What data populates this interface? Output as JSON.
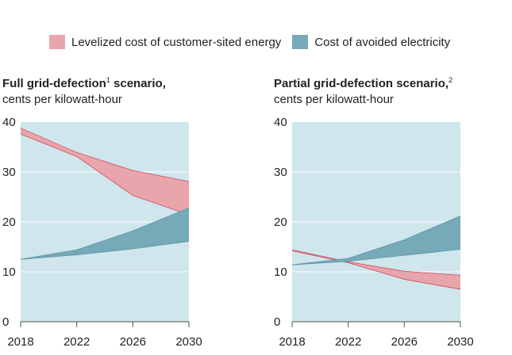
{
  "legend": {
    "items": [
      {
        "label": "Levelized cost of customer-sited energy",
        "color": "#e8a6ac"
      },
      {
        "label": "Cost of avoided electricity",
        "color": "#76aab9"
      }
    ]
  },
  "colors": {
    "plot_bg": "#cfe6ec",
    "grid": "#ffffff",
    "axis": "#6e6e6e",
    "customer_fill": "#e8a6ac",
    "customer_edge": "#cf4a5e",
    "avoided_fill": "#76aab9",
    "avoided_edge": "#5b93a5"
  },
  "panels": [
    {
      "title": "Full grid-defection",
      "footnote": "1",
      "title_rest": " scenario,",
      "subtitle": "cents per kilowatt-hour"
    },
    {
      "title": "Partial grid-defection scenario,",
      "footnote": "2",
      "title_rest": "",
      "subtitle": "cents per kilowatt-hour"
    }
  ],
  "chart_data": [
    {
      "type": "area",
      "title": "Full grid-defection scenario, cents per kilowatt-hour",
      "x": [
        2018,
        2022,
        2026,
        2030
      ],
      "xticks": [
        "2018",
        "2022",
        "2026",
        "2030"
      ],
      "yticks": [
        "0",
        "10",
        "20",
        "30",
        "40"
      ],
      "xlim": [
        2018,
        2030
      ],
      "ylim": [
        0,
        40
      ],
      "series": [
        {
          "name": "Levelized cost of customer-sited energy",
          "low": [
            37.6,
            33.1,
            25.3,
            21.4
          ],
          "high": [
            38.8,
            33.9,
            30.3,
            28.1
          ]
        },
        {
          "name": "Cost of avoided electricity",
          "low": [
            12.5,
            13.4,
            14.6,
            16.1
          ],
          "high": [
            12.5,
            14.4,
            18.2,
            22.8
          ]
        }
      ]
    },
    {
      "type": "area",
      "title": "Partial grid-defection scenario, cents per kilowatt-hour",
      "x": [
        2018,
        2022,
        2026,
        2030
      ],
      "xticks": [
        "2018",
        "2022",
        "2026",
        "2030"
      ],
      "yticks": [
        "0",
        "10",
        "20",
        "30",
        "40"
      ],
      "xlim": [
        2018,
        2030
      ],
      "ylim": [
        0,
        40
      ],
      "series": [
        {
          "name": "Levelized cost of customer-sited energy",
          "low": [
            14.2,
            11.8,
            8.5,
            6.5
          ],
          "high": [
            14.4,
            12.0,
            10.1,
            9.3
          ]
        },
        {
          "name": "Cost of avoided electricity",
          "low": [
            11.4,
            12.1,
            13.3,
            14.5
          ],
          "high": [
            11.4,
            12.7,
            16.4,
            21.2
          ]
        }
      ]
    }
  ]
}
